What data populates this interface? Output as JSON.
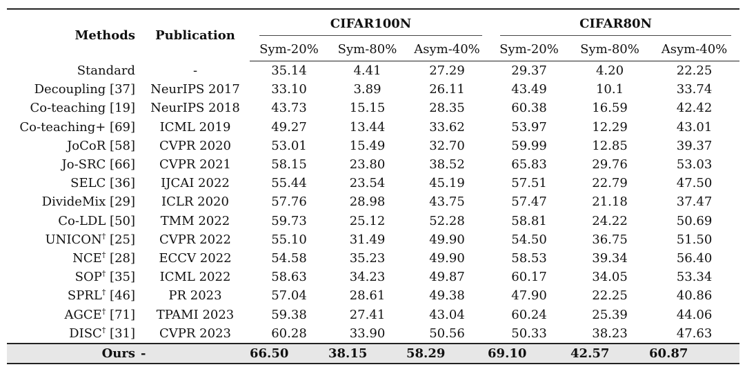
{
  "headers": {
    "methods": "Methods",
    "publication": "Publication",
    "group1": "CIFAR100N",
    "group2": "CIFAR80N",
    "subcols": [
      "Sym-20%",
      "Sym-80%",
      "Asym-40%",
      "Sym-20%",
      "Sym-80%",
      "Asym-40%"
    ]
  },
  "rows": [
    {
      "method": "Standard",
      "dagger": "",
      "ref": "",
      "pub": "-",
      "vals": [
        "35.14",
        "4.41",
        "27.29",
        "29.37",
        "4.20",
        "22.25"
      ]
    },
    {
      "method": "Decoupling",
      "dagger": "",
      "ref": "[37]",
      "pub": "NeurIPS 2017",
      "vals": [
        "33.10",
        "3.89",
        "26.11",
        "43.49",
        "10.1",
        "33.74"
      ]
    },
    {
      "method": "Co-teaching",
      "dagger": "",
      "ref": "[19]",
      "pub": "NeurIPS 2018",
      "vals": [
        "43.73",
        "15.15",
        "28.35",
        "60.38",
        "16.59",
        "42.42"
      ]
    },
    {
      "method": "Co-teaching+",
      "dagger": "",
      "ref": "[69]",
      "pub": "ICML 2019",
      "vals": [
        "49.27",
        "13.44",
        "33.62",
        "53.97",
        "12.29",
        "43.01"
      ]
    },
    {
      "method": "JoCoR",
      "dagger": "",
      "ref": "[58]",
      "pub": "CVPR 2020",
      "vals": [
        "53.01",
        "15.49",
        "32.70",
        "59.99",
        "12.85",
        "39.37"
      ]
    },
    {
      "method": "Jo-SRC",
      "dagger": "",
      "ref": "[66]",
      "pub": "CVPR 2021",
      "vals": [
        "58.15",
        "23.80",
        "38.52",
        "65.83",
        "29.76",
        "53.03"
      ]
    },
    {
      "method": "SELC",
      "dagger": "",
      "ref": "[36]",
      "pub": "IJCAI 2022",
      "vals": [
        "55.44",
        "23.54",
        "45.19",
        "57.51",
        "22.79",
        "47.50"
      ]
    },
    {
      "method": "DivideMix",
      "dagger": "",
      "ref": "[29]",
      "pub": "ICLR 2020",
      "vals": [
        "57.76",
        "28.98",
        "43.75",
        "57.47",
        "21.18",
        "37.47"
      ]
    },
    {
      "method": "Co-LDL",
      "dagger": "",
      "ref": "[50]",
      "pub": "TMM 2022",
      "vals": [
        "59.73",
        "25.12",
        "52.28",
        "58.81",
        "24.22",
        "50.69"
      ]
    },
    {
      "method": "UNICON",
      "dagger": "†",
      "ref": "[25]",
      "pub": "CVPR 2022",
      "vals": [
        "55.10",
        "31.49",
        "49.90",
        "54.50",
        "36.75",
        "51.50"
      ]
    },
    {
      "method": "NCE",
      "dagger": "†",
      "ref": "[28]",
      "pub": "ECCV 2022",
      "vals": [
        "54.58",
        "35.23",
        "49.90",
        "58.53",
        "39.34",
        "56.40"
      ]
    },
    {
      "method": "SOP",
      "dagger": "†",
      "ref": "[35]",
      "pub": "ICML 2022",
      "vals": [
        "58.63",
        "34.23",
        "49.87",
        "60.17",
        "34.05",
        "53.34"
      ]
    },
    {
      "method": "SPRL",
      "dagger": "†",
      "ref": "[46]",
      "pub": "PR 2023",
      "vals": [
        "57.04",
        "28.61",
        "49.38",
        "47.90",
        "22.25",
        "40.86"
      ]
    },
    {
      "method": "AGCE",
      "dagger": "†",
      "ref": "[71]",
      "pub": "TPAMI 2023",
      "vals": [
        "59.38",
        "27.41",
        "43.04",
        "60.24",
        "25.39",
        "44.06"
      ]
    },
    {
      "method": "DISC",
      "dagger": "†",
      "ref": "[31]",
      "pub": "CVPR 2023",
      "vals": [
        "60.28",
        "33.90",
        "50.56",
        "50.33",
        "38.23",
        "47.63"
      ]
    }
  ],
  "ours": {
    "method": "Ours",
    "pub": "-",
    "vals": [
      "66.50",
      "38.15",
      "58.29",
      "69.10",
      "42.57",
      "60.87"
    ]
  }
}
